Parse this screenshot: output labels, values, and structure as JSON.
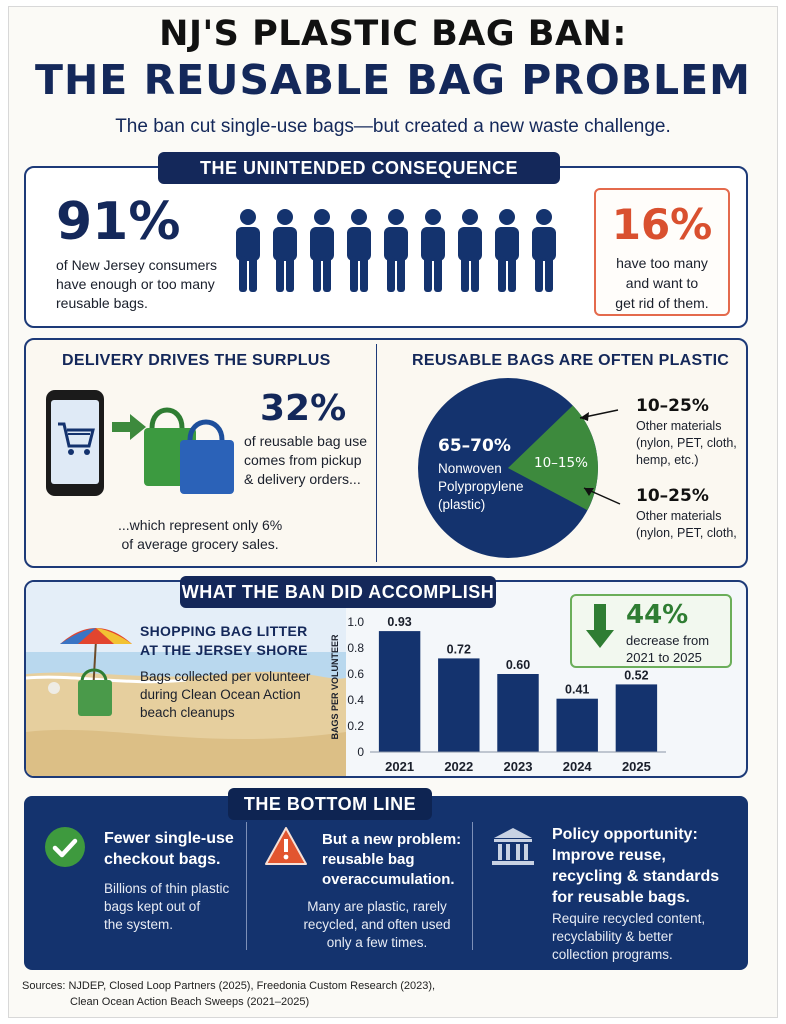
{
  "header": {
    "title_line1": "NJ'S PLASTIC BAG BAN:",
    "title_line2": "THE REUSABLE BAG PROBLEM",
    "subtitle": "The ban cut single-use bags—but created a new waste challenge."
  },
  "consequence": {
    "pill": "THE UNINTENDED CONSEQUENCE",
    "stat": "91%",
    "stat_text": [
      "of New Jersey consumers",
      "have enough or too many",
      "reusable bags."
    ],
    "figures_filled": 9,
    "figures_total": 10,
    "side_stat": "16%",
    "side_text": [
      "have too many",
      "and want to",
      "get rid of them."
    ],
    "colors": {
      "filled": "#14336e",
      "empty": "#9ba6b3",
      "accent_red": "#d9502f"
    }
  },
  "delivery": {
    "heading": "DELIVERY DRIVES THE SURPLUS",
    "stat": "32%",
    "stat_text": [
      "of reusable bag use",
      "comes from pickup",
      "& delivery orders..."
    ],
    "footnote": [
      "...which represent only 6%",
      "of average grocery sales."
    ],
    "icons": [
      "smartphone-cart-icon",
      "arrow-right-icon",
      "tote-bags-icon"
    ]
  },
  "plastic": {
    "heading": "REUSABLE BAGS ARE OFTEN PLASTIC",
    "pie_main_pct": "65–70%",
    "pie_main_label": [
      "Nonwoven",
      "Polypropylene",
      "(plastic)"
    ],
    "pie_slice_pct": "10–15%",
    "callout1_pct": "10–25%",
    "callout1_text": [
      "Other materials",
      "(nylon, PET, cloth,",
      "hemp, etc.)"
    ],
    "callout2_pct": "10–25%",
    "callout2_text": [
      "Other materials",
      "(nylon, PET, cloth,"
    ],
    "colors": {
      "main": "#14336e",
      "slice": "#3d8a3d"
    }
  },
  "accomplish": {
    "pill": "WHAT THE BAN DID ACCOMPLISH",
    "heading": [
      "SHOPPING BAG LITTER",
      "AT THE JERSEY SHORE"
    ],
    "body": [
      "Bags collected per volunteer",
      "during Clean Ocean Action",
      "beach cleanups"
    ],
    "badge_pct": "44%",
    "badge_text": [
      "decrease from",
      "2021 to 2025"
    ]
  },
  "chart_data": {
    "type": "bar",
    "categories": [
      "2021",
      "2022",
      "2023",
      "2024",
      "2025"
    ],
    "values": [
      0.93,
      0.72,
      0.6,
      0.41,
      0.52
    ],
    "value_labels": [
      "0.93",
      "0.72",
      "0.60",
      "0.41",
      "0.52"
    ],
    "ylabel": "BAGS PER VOLUNTEER",
    "ylim": [
      0,
      1.0
    ],
    "yticks": [
      "0",
      "0.2",
      "0.4",
      "0.6",
      "0.8",
      "1.0"
    ],
    "grid": false,
    "bar_color": "#14336e"
  },
  "bottom": {
    "pill": "THE BOTTOM LINE",
    "col1_title": [
      "Fewer single-use",
      "checkout bags."
    ],
    "col1_body": [
      "Billions of thin plastic",
      "bags kept out of",
      "the system."
    ],
    "col2_title": [
      "But a new problem:",
      "reusable bag",
      "overaccumulation."
    ],
    "col2_body": [
      "Many are plastic, rarely",
      "recycled, and often used",
      "only a few times."
    ],
    "col3_title": [
      "Policy opportunity:",
      "Improve reuse,",
      "recycling & standards",
      "for reusable bags."
    ],
    "col3_body": [
      "Require recycled content,",
      "recyclability & better",
      "collection programs."
    ]
  },
  "sources": {
    "line1": "Sources:  NJDEP, Closed Loop Partners (2025), Freedonia Custom Research (2023),",
    "line2": "Clean Ocean Action Beach Sweeps (2021–2025)"
  }
}
